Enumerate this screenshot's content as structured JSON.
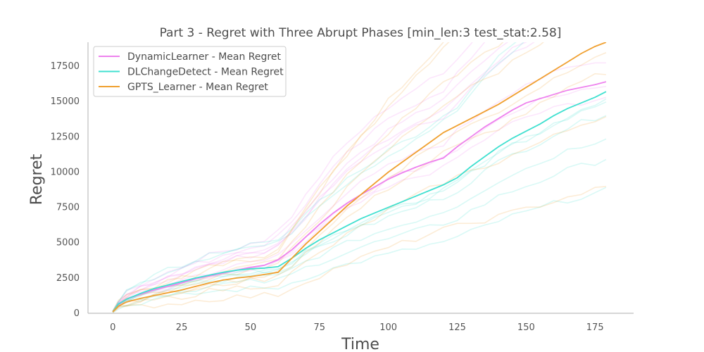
{
  "chart_data": {
    "type": "line",
    "title": "Part 3 - Regret with Three Abrupt Phases [min_len:3 test_stat:2.58]",
    "xlabel": "Time",
    "ylabel": "Regret",
    "xlim": [
      -9,
      189
    ],
    "ylim": [
      0,
      19200
    ],
    "xticks": [
      0,
      25,
      50,
      75,
      100,
      125,
      150,
      175
    ],
    "yticks": [
      0,
      2500,
      5000,
      7500,
      10000,
      12500,
      15000,
      17500
    ],
    "grid": false,
    "legend_position": "top-left",
    "series": [
      {
        "name": "DynamicLearner - Mean Regret",
        "color": "#ee82ee",
        "x": [
          0,
          2,
          5,
          10,
          15,
          20,
          25,
          30,
          35,
          40,
          45,
          50,
          55,
          60,
          65,
          70,
          75,
          80,
          85,
          90,
          95,
          100,
          105,
          110,
          115,
          120,
          125,
          130,
          135,
          140,
          145,
          150,
          155,
          160,
          165,
          170,
          175,
          179
        ],
        "y": [
          100,
          600,
          1000,
          1350,
          1650,
          1900,
          2150,
          2450,
          2650,
          2850,
          3050,
          3250,
          3400,
          3800,
          4500,
          5400,
          6300,
          7100,
          7800,
          8400,
          8950,
          9500,
          9950,
          10350,
          10700,
          11000,
          11800,
          12500,
          13200,
          13800,
          14400,
          14900,
          15200,
          15500,
          15800,
          16000,
          16200,
          16400
        ]
      },
      {
        "name": "DLChangeDetect - Mean Regret",
        "color": "#40e0d0",
        "x": [
          0,
          2,
          5,
          10,
          15,
          20,
          25,
          30,
          35,
          40,
          45,
          50,
          55,
          60,
          65,
          70,
          75,
          80,
          85,
          90,
          95,
          100,
          105,
          110,
          115,
          120,
          125,
          130,
          135,
          140,
          145,
          150,
          155,
          160,
          165,
          170,
          175,
          179
        ],
        "y": [
          100,
          650,
          1000,
          1400,
          1750,
          2000,
          2250,
          2500,
          2700,
          2900,
          3050,
          3150,
          3200,
          3300,
          3900,
          4600,
          5200,
          5700,
          6200,
          6700,
          7100,
          7500,
          7900,
          8300,
          8700,
          9100,
          9600,
          10400,
          11100,
          11800,
          12400,
          12900,
          13400,
          14000,
          14500,
          14900,
          15300,
          15700
        ]
      },
      {
        "name": "GPTS_Learner - Mean Regret",
        "color": "#f0a030",
        "x": [
          0,
          2,
          5,
          10,
          15,
          20,
          25,
          30,
          35,
          40,
          45,
          50,
          55,
          60,
          65,
          70,
          75,
          80,
          85,
          90,
          95,
          100,
          105,
          110,
          115,
          120,
          125,
          130,
          135,
          140,
          145,
          150,
          155,
          160,
          165,
          170,
          175,
          179
        ],
        "y": [
          100,
          500,
          800,
          1050,
          1250,
          1450,
          1650,
          1900,
          2150,
          2350,
          2500,
          2600,
          2750,
          2900,
          3900,
          4900,
          5800,
          6700,
          7600,
          8400,
          9200,
          10000,
          10700,
          11400,
          12100,
          12800,
          13300,
          13800,
          14300,
          14800,
          15400,
          16000,
          16600,
          17200,
          17800,
          18400,
          18900,
          19200
        ]
      }
    ]
  }
}
